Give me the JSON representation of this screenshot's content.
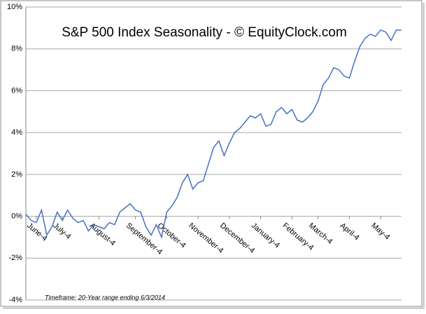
{
  "chart_data": {
    "type": "line",
    "title": "S&P 500 Index Seasonality - © EquityClock.com",
    "footnote": "Timeframe: 20-Year range ending 6/3/2014",
    "categories": [
      null,
      null,
      "June-4",
      null,
      null,
      null,
      null,
      "July-4",
      null,
      null,
      null,
      null,
      null,
      null,
      "August-4",
      null,
      null,
      null,
      null,
      null,
      null,
      "September-4",
      null,
      null,
      null,
      null,
      null,
      "October-4",
      null,
      null,
      null,
      null,
      null,
      "November-4",
      null,
      null,
      null,
      null,
      null,
      "December-4",
      null,
      null,
      null,
      null,
      null,
      "January-4",
      null,
      null,
      null,
      null,
      null,
      "February-4",
      null,
      null,
      null,
      null,
      "March-4",
      null,
      null,
      null,
      null,
      null,
      "April-4",
      null,
      null,
      null,
      null,
      null,
      "May-4",
      null,
      null,
      null,
      null
    ],
    "series": [
      {
        "name": "S&P 500",
        "color": "#4472c4",
        "values": [
          0.1,
          -0.2,
          -0.3,
          0.3,
          -0.9,
          -0.5,
          0.2,
          -0.2,
          0.3,
          -0.1,
          -0.3,
          -0.2,
          -0.7,
          -0.4,
          -0.5,
          -0.6,
          -0.3,
          -0.4,
          0.2,
          0.4,
          0.6,
          0.3,
          0.2,
          -0.5,
          -0.9,
          -0.4,
          -1.0,
          0.2,
          0.5,
          0.9,
          1.6,
          2.0,
          1.3,
          1.6,
          1.7,
          2.5,
          3.3,
          3.6,
          2.9,
          3.5,
          4.0,
          4.2,
          4.5,
          4.8,
          4.7,
          4.9,
          4.3,
          4.4,
          5.0,
          5.2,
          4.9,
          5.1,
          4.6,
          4.5,
          4.7,
          5.0,
          5.5,
          6.3,
          6.6,
          7.1,
          7.0,
          6.7,
          6.6,
          7.4,
          8.1,
          8.5,
          8.7,
          8.6,
          8.9,
          8.8,
          8.4,
          8.9,
          8.9
        ]
      }
    ],
    "ylim": [
      -4,
      10
    ],
    "yticks": [
      {
        "value": -4,
        "label": "-4%"
      },
      {
        "value": -2,
        "label": "-2%"
      },
      {
        "value": 0,
        "label": "0%"
      },
      {
        "value": 2,
        "label": "2%"
      },
      {
        "value": 4,
        "label": "4%"
      },
      {
        "value": 6,
        "label": "6%"
      },
      {
        "value": 8,
        "label": "8%"
      },
      {
        "value": 10,
        "label": "10%"
      }
    ],
    "grid": true
  }
}
